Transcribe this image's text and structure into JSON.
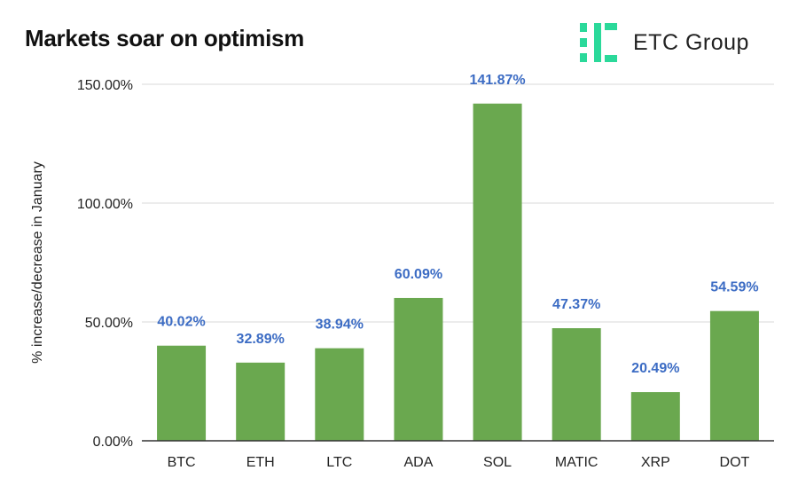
{
  "title": "Markets soar on optimism",
  "logo": {
    "text": "ETC Group",
    "icon": "etc-group-logo-icon",
    "color": "#2BD99A"
  },
  "colors": {
    "bar": "#6AA84F",
    "data_label": "#3C6CC4",
    "grid": "#D9D9D9",
    "axis": "#333333"
  },
  "chart_data": {
    "type": "bar",
    "title": "Markets soar on optimism",
    "xlabel": "",
    "ylabel": "% increase/decrease in January",
    "categories": [
      "BTC",
      "ETH",
      "LTC",
      "ADA",
      "SOL",
      "MATIC",
      "XRP",
      "DOT"
    ],
    "values": [
      40.02,
      32.89,
      38.94,
      60.09,
      141.87,
      47.37,
      20.49,
      54.59
    ],
    "data_labels": [
      "40.02%",
      "32.89%",
      "38.94%",
      "60.09%",
      "141.87%",
      "47.37%",
      "20.49%",
      "54.59%"
    ],
    "ylim": [
      0,
      150
    ],
    "yticks": [
      0,
      50,
      100,
      150
    ],
    "ytick_labels": [
      "0.00%",
      "50.00%",
      "100.00%",
      "150.00%"
    ],
    "grid": true,
    "legend": "none"
  }
}
